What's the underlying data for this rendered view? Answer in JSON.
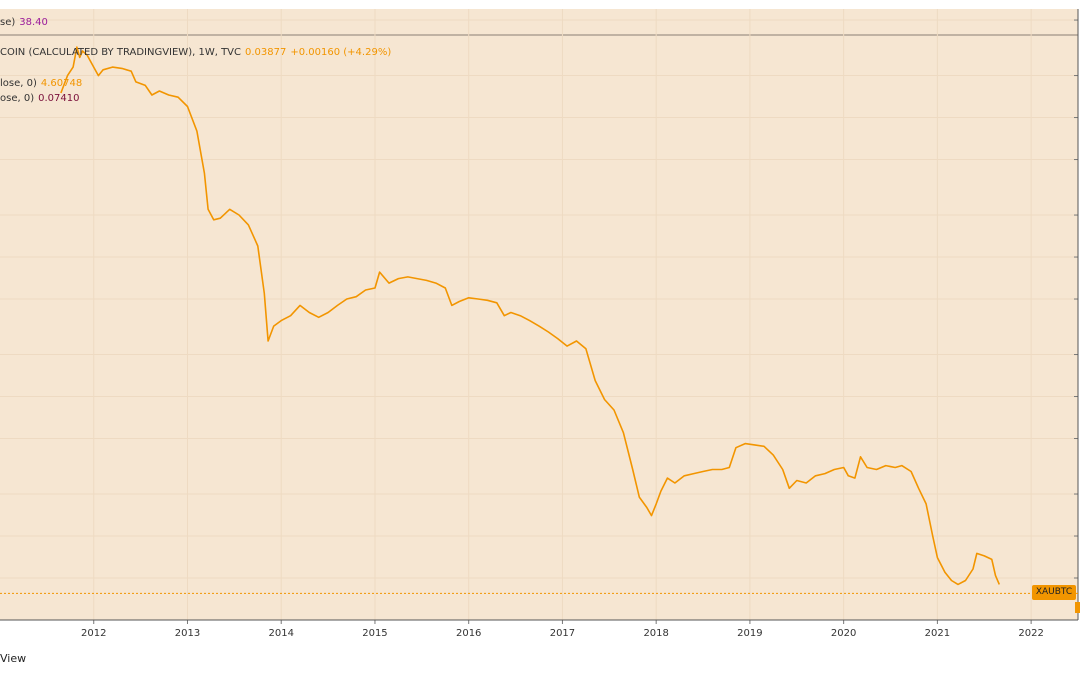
{
  "colors": {
    "background": "#f6e6d2",
    "series": "#f29500",
    "legend_purple": "#9b1c9b",
    "legend_maroon": "#7a0f3a",
    "legend_orange": "#f29500",
    "axis_text": "#333333"
  },
  "legend": {
    "row1": {
      "label": "se)",
      "value": "38.40"
    },
    "row2": {
      "label": "COIN (CALCULATED BY TRADINGVIEW), 1W, TVC",
      "value": "0.03877",
      "change": "+0.00160 (+4.29%)"
    },
    "row3": {
      "label": "lose, 0)",
      "value": "4.60748"
    },
    "row4": {
      "label": "ose, 0)",
      "value": "0.07410"
    }
  },
  "price_badge": "XAUBTC",
  "footer_text": "View",
  "chart_data": {
    "type": "line",
    "x_ticks": [
      "2012",
      "2013",
      "2014",
      "2015",
      "2016",
      "2017",
      "2018",
      "2019",
      "2020",
      "2021",
      "2022"
    ],
    "xlim": [
      2011.0,
      2022.5
    ],
    "y_scale": "log",
    "ylim": [
      0.025,
      600
    ],
    "last_price": 0.03877,
    "grid": true,
    "series": [
      {
        "color": "#f29500",
        "points": [
          [
            2011.65,
            150
          ],
          [
            2011.72,
            200
          ],
          [
            2011.78,
            230
          ],
          [
            2011.82,
            320
          ],
          [
            2011.85,
            270
          ],
          [
            2011.88,
            300
          ],
          [
            2011.93,
            280
          ],
          [
            2012.0,
            230
          ],
          [
            2012.05,
            200
          ],
          [
            2012.1,
            220
          ],
          [
            2012.2,
            230
          ],
          [
            2012.3,
            225
          ],
          [
            2012.4,
            215
          ],
          [
            2012.45,
            180
          ],
          [
            2012.55,
            170
          ],
          [
            2012.62,
            145
          ],
          [
            2012.7,
            155
          ],
          [
            2012.8,
            145
          ],
          [
            2012.9,
            140
          ],
          [
            2013.0,
            120
          ],
          [
            2013.1,
            80
          ],
          [
            2013.18,
            40
          ],
          [
            2013.22,
            22
          ],
          [
            2013.28,
            18.5
          ],
          [
            2013.35,
            19
          ],
          [
            2013.45,
            22
          ],
          [
            2013.55,
            20
          ],
          [
            2013.65,
            17
          ],
          [
            2013.75,
            12
          ],
          [
            2013.82,
            5.5
          ],
          [
            2013.86,
            2.5
          ],
          [
            2013.92,
            3.2
          ],
          [
            2014.0,
            3.5
          ],
          [
            2014.1,
            3.8
          ],
          [
            2014.2,
            4.5
          ],
          [
            2014.3,
            4.0
          ],
          [
            2014.4,
            3.7
          ],
          [
            2014.5,
            4.0
          ],
          [
            2014.6,
            4.5
          ],
          [
            2014.7,
            5.0
          ],
          [
            2014.8,
            5.2
          ],
          [
            2014.9,
            5.8
          ],
          [
            2015.0,
            6.0
          ],
          [
            2015.05,
            7.8
          ],
          [
            2015.15,
            6.5
          ],
          [
            2015.25,
            7.0
          ],
          [
            2015.35,
            7.2
          ],
          [
            2015.45,
            7.0
          ],
          [
            2015.55,
            6.8
          ],
          [
            2015.65,
            6.5
          ],
          [
            2015.75,
            6.0
          ],
          [
            2015.82,
            4.5
          ],
          [
            2015.9,
            4.8
          ],
          [
            2016.0,
            5.1
          ],
          [
            2016.1,
            5.0
          ],
          [
            2016.2,
            4.9
          ],
          [
            2016.3,
            4.7
          ],
          [
            2016.38,
            3.8
          ],
          [
            2016.45,
            4.0
          ],
          [
            2016.55,
            3.8
          ],
          [
            2016.65,
            3.5
          ],
          [
            2016.75,
            3.2
          ],
          [
            2016.85,
            2.9
          ],
          [
            2016.95,
            2.6
          ],
          [
            2017.05,
            2.3
          ],
          [
            2017.15,
            2.5
          ],
          [
            2017.25,
            2.2
          ],
          [
            2017.35,
            1.3
          ],
          [
            2017.45,
            0.95
          ],
          [
            2017.55,
            0.8
          ],
          [
            2017.65,
            0.55
          ],
          [
            2017.75,
            0.3
          ],
          [
            2017.82,
            0.19
          ],
          [
            2017.9,
            0.16
          ],
          [
            2017.95,
            0.14
          ],
          [
            2018.0,
            0.17
          ],
          [
            2018.05,
            0.21
          ],
          [
            2018.12,
            0.26
          ],
          [
            2018.2,
            0.24
          ],
          [
            2018.3,
            0.27
          ],
          [
            2018.4,
            0.28
          ],
          [
            2018.5,
            0.29
          ],
          [
            2018.6,
            0.3
          ],
          [
            2018.7,
            0.3
          ],
          [
            2018.78,
            0.31
          ],
          [
            2018.85,
            0.43
          ],
          [
            2018.95,
            0.46
          ],
          [
            2019.05,
            0.45
          ],
          [
            2019.15,
            0.44
          ],
          [
            2019.25,
            0.38
          ],
          [
            2019.35,
            0.3
          ],
          [
            2019.42,
            0.22
          ],
          [
            2019.5,
            0.25
          ],
          [
            2019.6,
            0.24
          ],
          [
            2019.7,
            0.27
          ],
          [
            2019.8,
            0.28
          ],
          [
            2019.9,
            0.3
          ],
          [
            2020.0,
            0.31
          ],
          [
            2020.05,
            0.27
          ],
          [
            2020.12,
            0.26
          ],
          [
            2020.18,
            0.37
          ],
          [
            2020.25,
            0.31
          ],
          [
            2020.35,
            0.3
          ],
          [
            2020.45,
            0.32
          ],
          [
            2020.55,
            0.31
          ],
          [
            2020.62,
            0.32
          ],
          [
            2020.72,
            0.29
          ],
          [
            2020.8,
            0.22
          ],
          [
            2020.88,
            0.17
          ],
          [
            2020.95,
            0.1
          ],
          [
            2021.0,
            0.07
          ],
          [
            2021.08,
            0.055
          ],
          [
            2021.15,
            0.048
          ],
          [
            2021.22,
            0.045
          ],
          [
            2021.3,
            0.048
          ],
          [
            2021.38,
            0.058
          ],
          [
            2021.42,
            0.075
          ],
          [
            2021.5,
            0.072
          ],
          [
            2021.58,
            0.068
          ],
          [
            2021.62,
            0.052
          ],
          [
            2021.66,
            0.045
          ]
        ]
      }
    ]
  }
}
